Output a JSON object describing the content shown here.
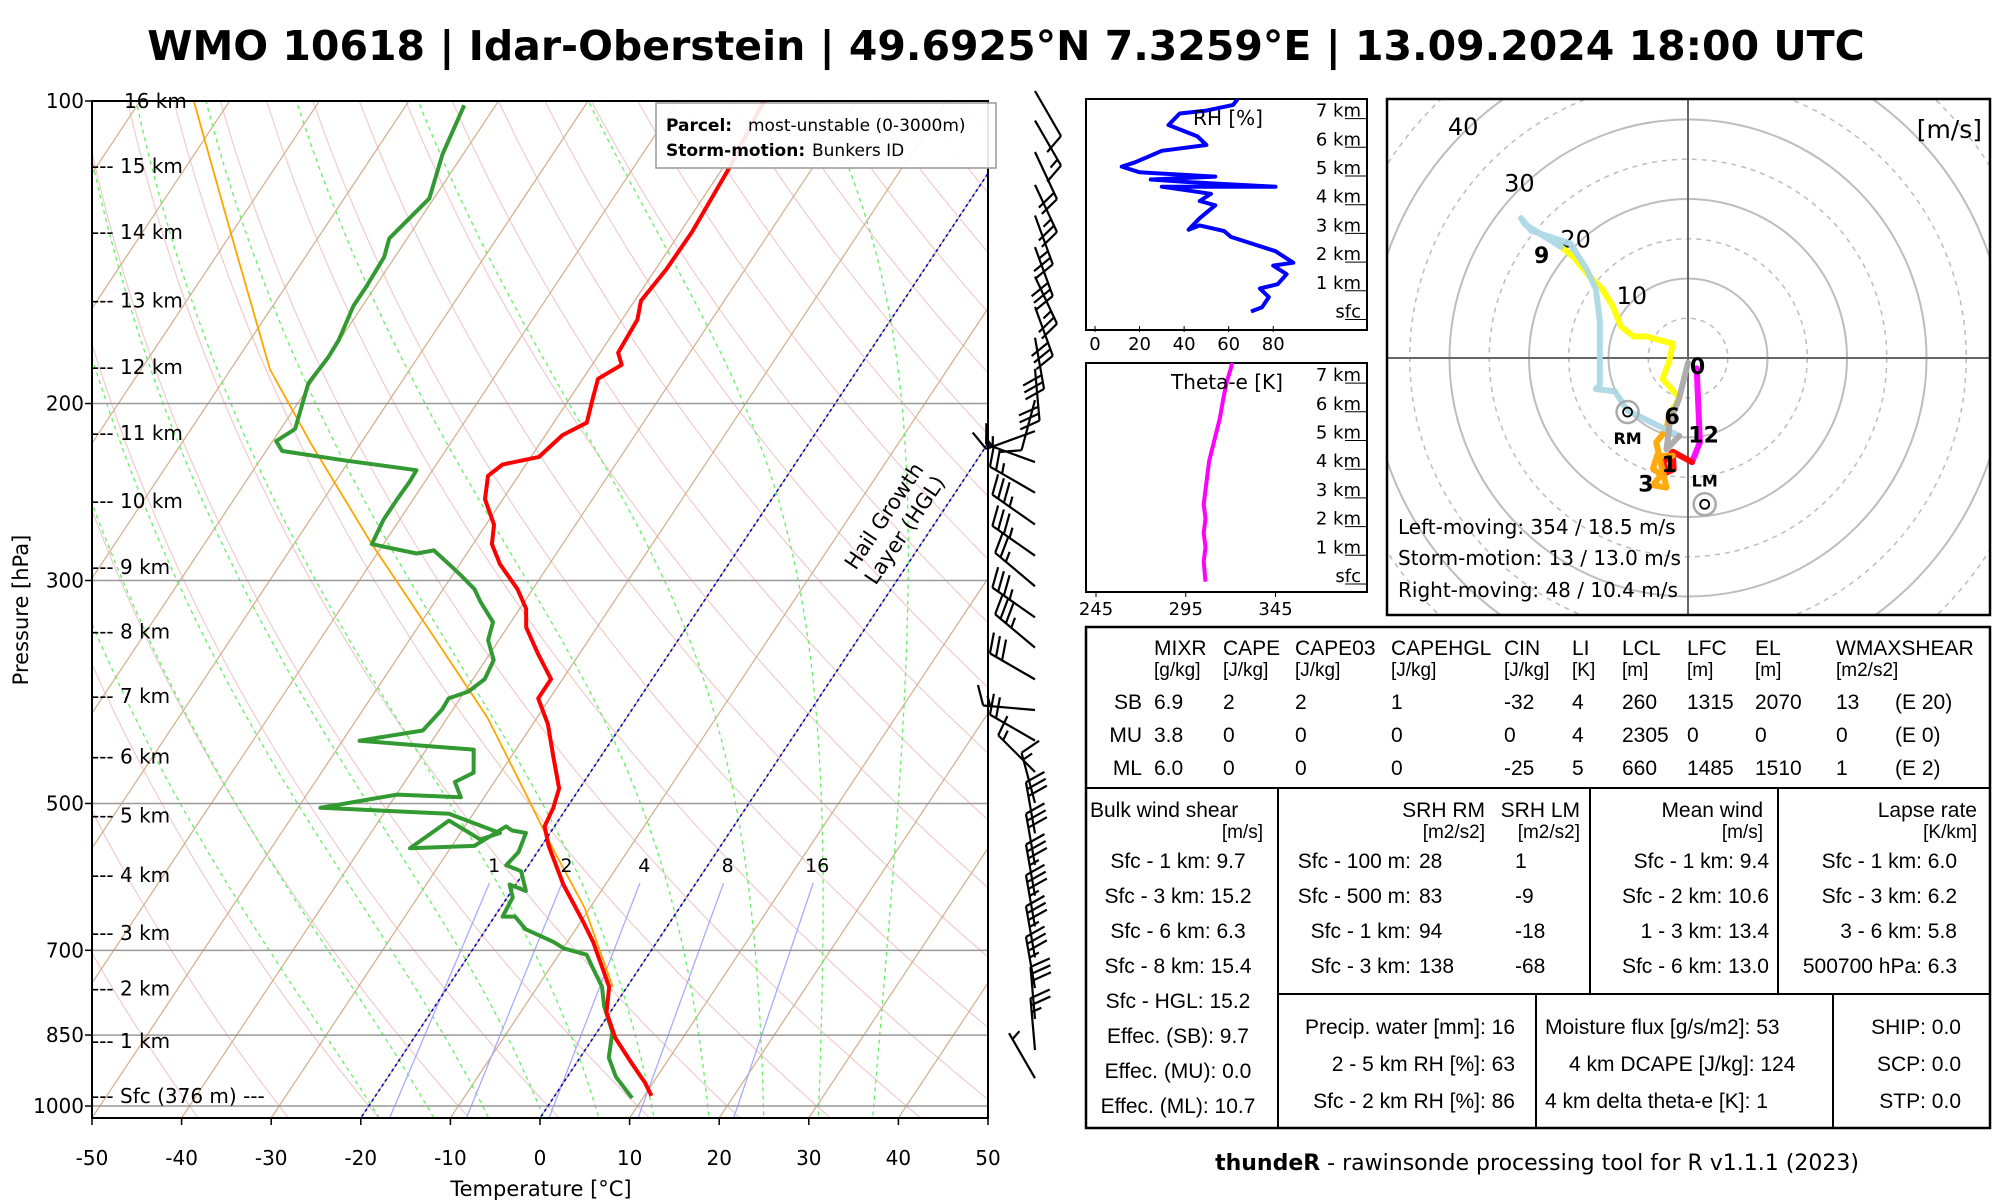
{
  "title": "WMO 10618 | Idar-Oberstein | 49.6925°N 7.3259°E | 13.09.2024 18:00 UTC",
  "footer": {
    "bold": "thundeR",
    "rest": " - rawinsonde processing tool for R v1.1.1 (2023)"
  },
  "legend": {
    "parcel_label": "Parcel:",
    "parcel_value": "most-unstable (0-3000m)",
    "storm_label": "Storm-motion:",
    "storm_value": "Bunkers ID"
  },
  "colors": {
    "temperature": "#ff0000",
    "dewpoint": "#339933",
    "parcel": "#ffa500",
    "hgl": "#0000cc",
    "mixing_ratio": "#aaaaff",
    "rh": "#0000ff",
    "theta_e": "#ff00ff"
  },
  "chart_data": [
    {
      "type": "line",
      "name": "skew-t",
      "xlabel": "Temperature [°C]",
      "ylabel": "Pressure [hPa]",
      "xlim": [
        -50,
        50
      ],
      "ylim": [
        1026,
        100
      ],
      "x_ticks": [
        -50,
        -40,
        -30,
        -20,
        -10,
        0,
        10,
        20,
        30,
        40,
        50
      ],
      "y_ticks": [
        100,
        200,
        300,
        500,
        700,
        850,
        1000
      ],
      "height_labels": [
        {
          "label": "16 km",
          "p": 100
        },
        {
          "label": "--- 15 km",
          "p": 116
        },
        {
          "label": "--- 14 km",
          "p": 135
        },
        {
          "label": "--- 13 km",
          "p": 158
        },
        {
          "label": "--- 12 km",
          "p": 184
        },
        {
          "label": "--- 11 km",
          "p": 214
        },
        {
          "label": "--- 10 km",
          "p": 250
        },
        {
          "label": "--- 9 km",
          "p": 291
        },
        {
          "label": "--- 8 km",
          "p": 337
        },
        {
          "label": "--- 7 km",
          "p": 391
        },
        {
          "label": "--- 6 km",
          "p": 449
        },
        {
          "label": "--- 5 km",
          "p": 514
        },
        {
          "label": "--- 4 km",
          "p": 589
        },
        {
          "label": "--- 3 km",
          "p": 673
        },
        {
          "label": "--- 2 km",
          "p": 764
        },
        {
          "label": "--- 1 km",
          "p": 862
        },
        {
          "label": "--- Sfc (376 m) ---",
          "p": 977
        }
      ],
      "mixing_ratio_labels": [
        "1",
        "2",
        "4",
        "8",
        "16"
      ],
      "hgl_label": [
        "Hail Growth",
        "Layer (HGL)"
      ],
      "hgl_isotherms": [
        0,
        -20
      ],
      "series": [
        {
          "name": "temperature",
          "p": [
            977,
            948,
            907,
            856,
            807,
            761,
            718,
            687,
            657,
            602,
            551,
            527,
            505,
            483,
            449,
            417,
            393,
            376,
            355,
            334,
            320,
            306,
            289,
            276,
            264,
            249,
            236,
            230,
            226,
            215,
            209,
            197,
            189,
            183,
            178,
            165,
            158,
            147,
            135,
            116,
            100
          ],
          "t": [
            10.8,
            9.1,
            6.2,
            2.5,
            -0.4,
            -2.0,
            -4.9,
            -7.1,
            -9.6,
            -14.7,
            -19.2,
            -21.1,
            -21.5,
            -22.3,
            -25.3,
            -28.3,
            -31.3,
            -31.3,
            -34.6,
            -37.9,
            -39.3,
            -41.7,
            -45.5,
            -47.9,
            -49.1,
            -52.0,
            -53.4,
            -52.6,
            -49.1,
            -48.1,
            -46.3,
            -47.5,
            -48.3,
            -46.7,
            -48.0,
            -48.3,
            -49.3,
            -48.8,
            -48.7,
            -49.3,
            -50.4
          ]
        },
        {
          "name": "dewpoint",
          "p": [
            982,
            935,
            895,
            844,
            796,
            761,
            728,
            707,
            697,
            687,
            667,
            648,
            648,
            620,
            602,
            611,
            584,
            576,
            559,
            535,
            532,
            527,
            551,
            554,
            520,
            543,
            535,
            512,
            505,
            490,
            493,
            476,
            466,
            442,
            436,
            433,
            423,
            403,
            393,
            387,
            376,
            360,
            344,
            330,
            315,
            306,
            297,
            289,
            280,
            282,
            276,
            261,
            249,
            239,
            233,
            228,
            223,
            218,
            212,
            191,
            180,
            173,
            160,
            153,
            143,
            137,
            125,
            113,
            101
          ],
          "t": [
            8.8,
            5.4,
            3.2,
            1.7,
            -1.1,
            -2.8,
            -5.3,
            -6.9,
            -9.9,
            -11.5,
            -15.6,
            -17.7,
            -19.1,
            -19.4,
            -20.7,
            -18.4,
            -20.4,
            -22.5,
            -22.1,
            -22.7,
            -24.4,
            -25.4,
            -27.5,
            -34.5,
            -32.2,
            -27.3,
            -25.6,
            -32.7,
            -47.5,
            -39.9,
            -32.6,
            -34.4,
            -33.0,
            -34.7,
            -43.7,
            -48.1,
            -41.8,
            -41.2,
            -41.3,
            -39.6,
            -38.7,
            -39.1,
            -41.2,
            -42.0,
            -44.9,
            -46.5,
            -48.9,
            -51.2,
            -53.9,
            -55.6,
            -61.3,
            -61.8,
            -61.8,
            -61.7,
            -61.8,
            -70.3,
            -78.2,
            -79.6,
            -78.4,
            -80.3,
            -80.0,
            -80.1,
            -81.0,
            -81.0,
            -81.2,
            -82.0,
            -80.5,
            -82.3,
            -83.5
          ]
        },
        {
          "name": "parcel",
          "p": [
            761,
            635,
            551,
            490,
            411,
            344,
            276,
            219,
            185,
            135,
            100
          ],
          "t": [
            -1.6,
            -10.6,
            -18.9,
            -25.5,
            -35.5,
            -47.0,
            -61.3,
            -75.6,
            -85.6,
            -100.2,
            -114.0
          ]
        }
      ],
      "wind_barbs_kt": [
        [
          100,
          150,
          10
        ],
        [
          107,
          150,
          15
        ],
        [
          115,
          155,
          20
        ],
        [
          124,
          155,
          25
        ],
        [
          133,
          160,
          25
        ],
        [
          143,
          160,
          30
        ],
        [
          153,
          155,
          25
        ],
        [
          164,
          160,
          30
        ],
        [
          176,
          170,
          30
        ],
        [
          189,
          175,
          30
        ],
        [
          203,
          195,
          10
        ],
        [
          218,
          250,
          15
        ],
        [
          234,
          290,
          15
        ],
        [
          251,
          300,
          25
        ],
        [
          270,
          305,
          35
        ],
        [
          290,
          305,
          35
        ],
        [
          311,
          310,
          25
        ],
        [
          334,
          305,
          35
        ],
        [
          358,
          310,
          35
        ],
        [
          385,
          300,
          30
        ],
        [
          413,
          275,
          15
        ],
        [
          443,
          300,
          20
        ],
        [
          476,
          315,
          15
        ],
        [
          511,
          345,
          15
        ],
        [
          548,
          350,
          30
        ],
        [
          589,
          350,
          30
        ],
        [
          632,
          350,
          35
        ],
        [
          678,
          350,
          35
        ],
        [
          728,
          350,
          35
        ],
        [
          781,
          350,
          35
        ],
        [
          838,
          355,
          30
        ],
        [
          900,
          355,
          25
        ],
        [
          960,
          330,
          5
        ]
      ]
    },
    {
      "type": "line",
      "name": "rh-profile",
      "title": "RH [%]",
      "x_ticks": [
        0,
        20,
        40,
        60,
        80
      ],
      "height_labels": [
        "7 km",
        "6 km",
        "5 km",
        "4 km",
        "3 km",
        "2 km",
        "1 km",
        "sfc"
      ],
      "series": [
        {
          "name": "RH",
          "x": [
            70,
            75,
            78,
            74,
            82,
            86,
            80,
            89,
            81,
            61,
            58,
            47,
            42,
            47,
            54,
            47,
            52,
            30,
            81,
            43,
            25,
            54,
            20,
            12,
            18,
            30,
            50,
            46,
            33,
            38,
            50,
            62,
            64
          ],
          "height_km": [
            0,
            0.15,
            0.5,
            0.8,
            0.95,
            1.3,
            1.6,
            1.7,
            2.1,
            2.6,
            2.8,
            3.0,
            2.85,
            3.25,
            3.7,
            3.85,
            4.1,
            4.35,
            4.35,
            4.5,
            4.6,
            4.7,
            4.85,
            5.05,
            5.2,
            5.6,
            5.8,
            6.1,
            6.5,
            6.9,
            7.0,
            7.2,
            7.4
          ]
        }
      ]
    },
    {
      "type": "line",
      "name": "theta-e-profile",
      "title": "Theta-e [K]",
      "x_ticks": [
        245,
        295,
        345
      ],
      "height_labels": [
        "7 km",
        "6 km",
        "5 km",
        "4 km",
        "3 km",
        "2 km",
        "1 km",
        "sfc"
      ],
      "series": [
        {
          "name": "theta-e",
          "x": [
            306,
            305,
            306,
            305,
            306,
            305,
            306,
            307,
            308,
            310,
            312,
            314,
            316,
            318,
            320,
            321
          ],
          "height_km": [
            -0.2,
            0.5,
            1,
            1.5,
            2,
            2.5,
            3,
            3.5,
            4,
            4.5,
            5,
            5.5,
            6.2,
            6.8,
            7.2,
            7.5
          ]
        }
      ]
    },
    {
      "type": "line",
      "name": "hodograph",
      "unit_label": "[m/s]",
      "ring_labels": [
        "10",
        "20",
        "30",
        "40"
      ],
      "segments": [
        {
          "name": "0-1 km",
          "color": "#ff00ff",
          "u": [
            1.1,
            1.5,
            0.5
          ],
          "v": [
            -1.3,
            -10.6,
            -13.1
          ]
        },
        {
          "name": "1-3 km",
          "color": "#ff0000",
          "u": [
            0.5,
            -1.9,
            -3.1,
            -2.7,
            -1.8,
            -1.9
          ],
          "v": [
            -13.1,
            -11.8,
            -13.1,
            -14.4,
            -14.0,
            -12.3
          ]
        },
        {
          "name": "3-6 km",
          "color": "#ffa500",
          "u": [
            -1.9,
            -3.9,
            -4.4,
            -3.4,
            -4.4,
            -2.7,
            -4.0,
            -2.7,
            -2.4
          ],
          "v": [
            -12.3,
            -12.3,
            -13.9,
            -14.7,
            -16.0,
            -16.3,
            -10.6,
            -9.0,
            -7.4
          ]
        },
        {
          "name": "6-9 km",
          "color": "#ffff00",
          "u": [
            -2.4,
            -1.1,
            -3.2,
            -2.4,
            -1.9,
            -5.2,
            -6.8,
            -8.4,
            -9.5,
            -10.8,
            -12.4,
            -14.4,
            -16.0
          ],
          "v": [
            -7.4,
            -5.0,
            -2.6,
            -0.6,
            1.8,
            2.7,
            2.7,
            3.9,
            6.6,
            8.7,
            10.3,
            12.7,
            14.0
          ]
        },
        {
          "name": "9-12 km",
          "color": "#add8e6",
          "u": [
            -16.0,
            -20.5,
            -21.0,
            -19.7,
            -14.8,
            -12.7,
            -11.6,
            -11.1,
            -11.1,
            -11.6,
            -9.2,
            -7.6,
            -4.4,
            -1.1
          ],
          "v": [
            14.0,
            16.8,
            17.6,
            16.0,
            14.4,
            11.1,
            8.7,
            4.7,
            -3.4,
            -3.9,
            -4.2,
            -6.6,
            -8.2,
            -9.8
          ]
        },
        {
          "name": "12+ km",
          "color": "#aaaaaa",
          "u": [
            -1.1,
            -2.7,
            -2.3,
            -1.1,
            0
          ],
          "v": [
            -9.8,
            -11.5,
            -8.2,
            -5.0,
            -0.6
          ]
        }
      ],
      "height_markers": [
        {
          "label": "0",
          "u": 1.2,
          "v": -1.0
        },
        {
          "label": "1",
          "u": -0.6,
          "v": -11.6
        },
        {
          "label": "3",
          "u": -5.3,
          "v": -15.8
        },
        {
          "label": "6",
          "u": -2.0,
          "v": -7.3
        },
        {
          "label": "9",
          "u": -16.4,
          "v": 13.7
        },
        {
          "label": "12",
          "u": 0.2,
          "v": -10.1
        }
      ],
      "storm_motion": [
        {
          "label": "RM",
          "u": -7.6,
          "v": -6.8
        },
        {
          "label": "LM",
          "u": 2.1,
          "v": -18.4
        }
      ],
      "text": [
        "Left-moving: 354 / 18.5 m/s",
        "Storm-motion: 13 / 13.0 m/s",
        "Right-moving: 48 / 10.4 m/s"
      ]
    }
  ],
  "table": {
    "params": {
      "headers": [
        {
          "name": "MIXR",
          "unit": "[g/kg]"
        },
        {
          "name": "CAPE",
          "unit": "[J/kg]"
        },
        {
          "name": "CAPE03",
          "unit": "[J/kg]"
        },
        {
          "name": "CAPEHGL",
          "unit": "[J/kg]"
        },
        {
          "name": "CIN",
          "unit": "[J/kg]"
        },
        {
          "name": "LI",
          "unit": "[K]"
        },
        {
          "name": "LCL",
          "unit": "[m]"
        },
        {
          "name": "LFC",
          "unit": "[m]"
        },
        {
          "name": "EL",
          "unit": "[m]"
        },
        {
          "name": "WMAXSHEAR",
          "unit": "[m2/s2]"
        }
      ],
      "rows": [
        {
          "label": "SB",
          "values": [
            "6.9",
            "2",
            "2",
            "1",
            "-32",
            "4",
            "260",
            "1315",
            "2070",
            "13",
            "(E 20)"
          ]
        },
        {
          "label": "MU",
          "values": [
            "3.8",
            "0",
            "0",
            "0",
            "0",
            "4",
            "2305",
            "0",
            "0",
            "0",
            "(E 0)"
          ]
        },
        {
          "label": "ML",
          "values": [
            "6.0",
            "0",
            "0",
            "0",
            "-25",
            "5",
            "660",
            "1485",
            "1510",
            "1",
            "(E 2)"
          ]
        }
      ]
    },
    "bulk_shear": {
      "title": "Bulk wind shear",
      "unit": "[m/s]",
      "rows": [
        "Sfc - 1 km: 9.7",
        "Sfc - 3 km: 15.2",
        "Sfc - 6 km: 6.3",
        "Sfc - 8 km: 15.4",
        "Sfc - HGL: 15.2",
        "Effec. (SB): 9.7",
        "Effec. (MU): 0.0",
        "Effec. (ML): 10.7"
      ]
    },
    "srh": {
      "title_rm": "SRH RM",
      "title_lm": "SRH LM",
      "unit_rm": "[m2/s2]",
      "unit_lm": "[m2/s2]",
      "rows": [
        {
          "label": "Sfc - 100 m:",
          "rm": "28",
          "lm": "1"
        },
        {
          "label": "Sfc - 500 m:",
          "rm": "83",
          "lm": "-9"
        },
        {
          "label": "Sfc - 1 km:",
          "rm": "94",
          "lm": "-18"
        },
        {
          "label": "Sfc - 3 km:",
          "rm": "138",
          "lm": "-68"
        }
      ]
    },
    "mean_wind": {
      "title": "Mean wind",
      "unit": "[m/s]",
      "rows": [
        "Sfc - 1 km: 9.4",
        "Sfc - 2 km: 10.6",
        "1 - 3 km: 13.4",
        "Sfc - 6 km: 13.0"
      ]
    },
    "lapse_rate": {
      "title": "Lapse rate",
      "unit": "[K/km]",
      "rows": [
        "Sfc - 1 km: 6.0",
        "Sfc - 3 km: 6.2",
        "3 - 6 km: 5.8",
        "500700 hPa: 6.3"
      ]
    },
    "moisture": {
      "rows": [
        "Precip. water [mm]: 16",
        "2 - 5 km RH [%]: 63",
        "Sfc - 2 km RH [%]: 86"
      ]
    },
    "flux": {
      "rows": [
        "Moisture flux [g/s/m2]: 53",
        "4 km DCAPE [J/kg]: 124",
        "4 km delta theta-e [K]: 1"
      ]
    },
    "composite": {
      "rows": [
        "SHIP: 0.0",
        "SCP: 0.0",
        "STP: 0.0"
      ]
    }
  }
}
